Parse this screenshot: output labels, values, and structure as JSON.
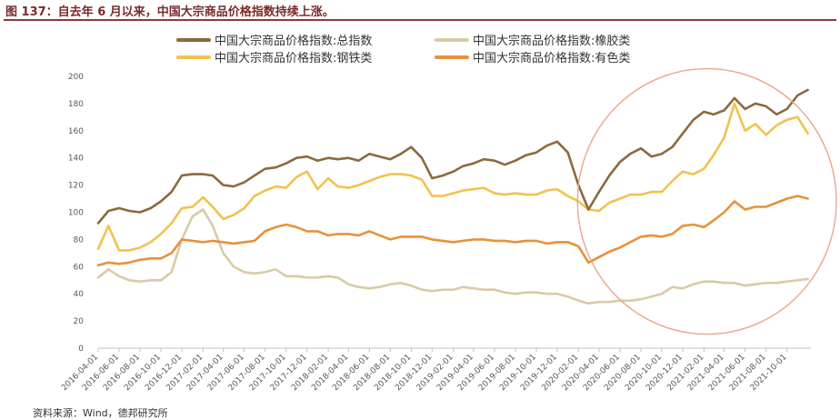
{
  "figure_title": "图 137：自去年 6 月以来，中国大宗商品价格指数持续上涨。",
  "source": "资料来源：Wind，德邦研究所",
  "colors": {
    "total": "#8b6a3e",
    "rubber": "#d8cba6",
    "steel": "#f2c24e",
    "nonferrous": "#e8913a",
    "circle": "#e9a68c",
    "rule": "#8b3a3a"
  },
  "chart_data": {
    "type": "line",
    "title": "",
    "xlabel": "",
    "ylabel": "",
    "ylim": [
      0,
      200
    ],
    "yticks": [
      0,
      20,
      40,
      60,
      80,
      100,
      120,
      140,
      160,
      180,
      200
    ],
    "xlim": [
      "2016-04-01",
      "2021-12-10"
    ],
    "xticks": [
      "2016-04-01",
      "2016-06-01",
      "2016-08-01",
      "2016-10-01",
      "2016-12-01",
      "2017-02-01",
      "2017-04-01",
      "2017-06-01",
      "2017-08-01",
      "2017-10-01",
      "2017-12-01",
      "2018-02-01",
      "2018-04-01",
      "2018-06-01",
      "2018-08-01",
      "2018-10-01",
      "2018-12-01",
      "2019-02-01",
      "2019-04-01",
      "2019-06-01",
      "2019-08-01",
      "2019-10-01",
      "2019-12-01",
      "2020-02-01",
      "2020-04-01",
      "2020-06-01",
      "2020-08-01",
      "2020-10-01",
      "2020-12-01",
      "2021-02-01",
      "2021-04-01",
      "2021-06-01",
      "2021-08-01",
      "2021-10-01"
    ],
    "grid": false,
    "legend_position": "top",
    "annotation": "circle highlighting 2020-03 to 2021-12",
    "series": [
      {
        "key": "total",
        "name": "中国大宗商品价格指数:总指数",
        "x": [
          "2016-04-01",
          "2016-05-01",
          "2016-06-01",
          "2016-07-01",
          "2016-08-01",
          "2016-09-01",
          "2016-10-01",
          "2016-11-01",
          "2016-12-01",
          "2017-01-01",
          "2017-02-01",
          "2017-03-01",
          "2017-04-01",
          "2017-05-01",
          "2017-06-01",
          "2017-07-01",
          "2017-08-01",
          "2017-09-01",
          "2017-10-01",
          "2017-11-01",
          "2017-12-01",
          "2018-01-01",
          "2018-02-01",
          "2018-03-01",
          "2018-04-01",
          "2018-05-01",
          "2018-06-01",
          "2018-07-01",
          "2018-08-01",
          "2018-09-01",
          "2018-10-01",
          "2018-11-01",
          "2018-12-01",
          "2019-01-01",
          "2019-02-01",
          "2019-03-01",
          "2019-04-01",
          "2019-05-01",
          "2019-06-01",
          "2019-07-01",
          "2019-08-01",
          "2019-09-01",
          "2019-10-01",
          "2019-11-01",
          "2019-12-01",
          "2020-01-01",
          "2020-02-01",
          "2020-03-01",
          "2020-04-01",
          "2020-05-01",
          "2020-06-01",
          "2020-07-01",
          "2020-08-01",
          "2020-09-01",
          "2020-10-01",
          "2020-11-01",
          "2020-12-01",
          "2021-01-01",
          "2021-02-01",
          "2021-03-01",
          "2021-04-01",
          "2021-05-01",
          "2021-06-01",
          "2021-07-01",
          "2021-08-01",
          "2021-09-01",
          "2021-10-01",
          "2021-11-01",
          "2021-12-01"
        ],
        "values": [
          92,
          101,
          103,
          101,
          100,
          103,
          108,
          115,
          127,
          128,
          128,
          127,
          120,
          119,
          122,
          127,
          132,
          133,
          136,
          140,
          141,
          138,
          140,
          139,
          140,
          138,
          143,
          141,
          139,
          143,
          148,
          140,
          125,
          127,
          130,
          134,
          136,
          139,
          138,
          135,
          138,
          142,
          144,
          149,
          152,
          144,
          120,
          102,
          115,
          127,
          137,
          143,
          147,
          141,
          143,
          148,
          158,
          168,
          174,
          172,
          175,
          184,
          176,
          180,
          178,
          172,
          176,
          186,
          190
        ]
      },
      {
        "key": "rubber",
        "name": "中国大宗商品价格指数:橡胶类",
        "x": [
          "2016-04-01",
          "2016-05-01",
          "2016-06-01",
          "2016-07-01",
          "2016-08-01",
          "2016-09-01",
          "2016-10-01",
          "2016-11-01",
          "2016-12-01",
          "2017-01-01",
          "2017-02-01",
          "2017-03-01",
          "2017-04-01",
          "2017-05-01",
          "2017-06-01",
          "2017-07-01",
          "2017-08-01",
          "2017-09-01",
          "2017-10-01",
          "2017-11-01",
          "2017-12-01",
          "2018-01-01",
          "2018-02-01",
          "2018-03-01",
          "2018-04-01",
          "2018-05-01",
          "2018-06-01",
          "2018-07-01",
          "2018-08-01",
          "2018-09-01",
          "2018-10-01",
          "2018-11-01",
          "2018-12-01",
          "2019-01-01",
          "2019-02-01",
          "2019-03-01",
          "2019-04-01",
          "2019-05-01",
          "2019-06-01",
          "2019-07-01",
          "2019-08-01",
          "2019-09-01",
          "2019-10-01",
          "2019-11-01",
          "2019-12-01",
          "2020-01-01",
          "2020-02-01",
          "2020-03-01",
          "2020-04-01",
          "2020-05-01",
          "2020-06-01",
          "2020-07-01",
          "2020-08-01",
          "2020-09-01",
          "2020-10-01",
          "2020-11-01",
          "2020-12-01",
          "2021-01-01",
          "2021-02-01",
          "2021-03-01",
          "2021-04-01",
          "2021-05-01",
          "2021-06-01",
          "2021-07-01",
          "2021-08-01",
          "2021-09-01",
          "2021-10-01",
          "2021-11-01",
          "2021-12-01"
        ],
        "values": [
          52,
          58,
          53,
          50,
          49,
          50,
          50,
          56,
          80,
          97,
          102,
          90,
          70,
          60,
          56,
          55,
          56,
          58,
          53,
          53,
          52,
          52,
          53,
          52,
          47,
          45,
          44,
          45,
          47,
          48,
          46,
          43,
          42,
          43,
          43,
          45,
          44,
          43,
          43,
          41,
          40,
          41,
          41,
          40,
          40,
          38,
          35,
          33,
          34,
          34,
          35,
          35,
          36,
          38,
          40,
          45,
          44,
          47,
          49,
          49,
          48,
          48,
          46,
          47,
          48,
          48,
          49,
          50,
          51
        ]
      },
      {
        "key": "steel",
        "name": "中国大宗商品价格指数:钢铁类",
        "x": [
          "2016-04-01",
          "2016-05-01",
          "2016-06-01",
          "2016-07-01",
          "2016-08-01",
          "2016-09-01",
          "2016-10-01",
          "2016-11-01",
          "2016-12-01",
          "2017-01-01",
          "2017-02-01",
          "2017-03-01",
          "2017-04-01",
          "2017-05-01",
          "2017-06-01",
          "2017-07-01",
          "2017-08-01",
          "2017-09-01",
          "2017-10-01",
          "2017-11-01",
          "2017-12-01",
          "2018-01-01",
          "2018-02-01",
          "2018-03-01",
          "2018-04-01",
          "2018-05-01",
          "2018-06-01",
          "2018-07-01",
          "2018-08-01",
          "2018-09-01",
          "2018-10-01",
          "2018-11-01",
          "2018-12-01",
          "2019-01-01",
          "2019-02-01",
          "2019-03-01",
          "2019-04-01",
          "2019-05-01",
          "2019-06-01",
          "2019-07-01",
          "2019-08-01",
          "2019-09-01",
          "2019-10-01",
          "2019-11-01",
          "2019-12-01",
          "2020-01-01",
          "2020-02-01",
          "2020-03-01",
          "2020-04-01",
          "2020-05-01",
          "2020-06-01",
          "2020-07-01",
          "2020-08-01",
          "2020-09-01",
          "2020-10-01",
          "2020-11-01",
          "2020-12-01",
          "2021-01-01",
          "2021-02-01",
          "2021-03-01",
          "2021-04-01",
          "2021-05-01",
          "2021-06-01",
          "2021-07-01",
          "2021-08-01",
          "2021-09-01",
          "2021-10-01",
          "2021-11-01",
          "2021-12-01"
        ],
        "values": [
          73,
          90,
          72,
          72,
          74,
          78,
          84,
          92,
          103,
          104,
          111,
          104,
          95,
          98,
          103,
          112,
          116,
          119,
          118,
          126,
          130,
          117,
          125,
          119,
          118,
          120,
          123,
          126,
          128,
          128,
          127,
          124,
          112,
          112,
          114,
          116,
          117,
          118,
          114,
          113,
          114,
          113,
          113,
          116,
          117,
          112,
          108,
          102,
          101,
          107,
          110,
          113,
          113,
          115,
          115,
          123,
          130,
          128,
          132,
          142,
          155,
          180,
          160,
          165,
          157,
          164,
          168,
          170,
          158
        ]
      },
      {
        "key": "nonferrous",
        "name": "中国大宗商品价格指数:有色类",
        "x": [
          "2016-04-01",
          "2016-05-01",
          "2016-06-01",
          "2016-07-01",
          "2016-08-01",
          "2016-09-01",
          "2016-10-01",
          "2016-11-01",
          "2016-12-01",
          "2017-01-01",
          "2017-02-01",
          "2017-03-01",
          "2017-04-01",
          "2017-05-01",
          "2017-06-01",
          "2017-07-01",
          "2017-08-01",
          "2017-09-01",
          "2017-10-01",
          "2017-11-01",
          "2017-12-01",
          "2018-01-01",
          "2018-02-01",
          "2018-03-01",
          "2018-04-01",
          "2018-05-01",
          "2018-06-01",
          "2018-07-01",
          "2018-08-01",
          "2018-09-01",
          "2018-10-01",
          "2018-11-01",
          "2018-12-01",
          "2019-01-01",
          "2019-02-01",
          "2019-03-01",
          "2019-04-01",
          "2019-05-01",
          "2019-06-01",
          "2019-07-01",
          "2019-08-01",
          "2019-09-01",
          "2019-10-01",
          "2019-11-01",
          "2019-12-01",
          "2020-01-01",
          "2020-02-01",
          "2020-03-01",
          "2020-04-01",
          "2020-05-01",
          "2020-06-01",
          "2020-07-01",
          "2020-08-01",
          "2020-09-01",
          "2020-10-01",
          "2020-11-01",
          "2020-12-01",
          "2021-01-01",
          "2021-02-01",
          "2021-03-01",
          "2021-04-01",
          "2021-05-01",
          "2021-06-01",
          "2021-07-01",
          "2021-08-01",
          "2021-09-01",
          "2021-10-01",
          "2021-11-01",
          "2021-12-01"
        ],
        "values": [
          61,
          63,
          62,
          63,
          65,
          66,
          66,
          70,
          80,
          79,
          78,
          79,
          78,
          77,
          78,
          79,
          86,
          89,
          91,
          89,
          86,
          86,
          83,
          84,
          84,
          83,
          86,
          83,
          80,
          82,
          82,
          82,
          80,
          79,
          78,
          79,
          80,
          80,
          79,
          79,
          78,
          79,
          79,
          77,
          78,
          78,
          75,
          63,
          67,
          71,
          74,
          78,
          82,
          83,
          82,
          84,
          90,
          91,
          89,
          94,
          100,
          108,
          102,
          104,
          104,
          107,
          110,
          112,
          110
        ]
      }
    ]
  }
}
